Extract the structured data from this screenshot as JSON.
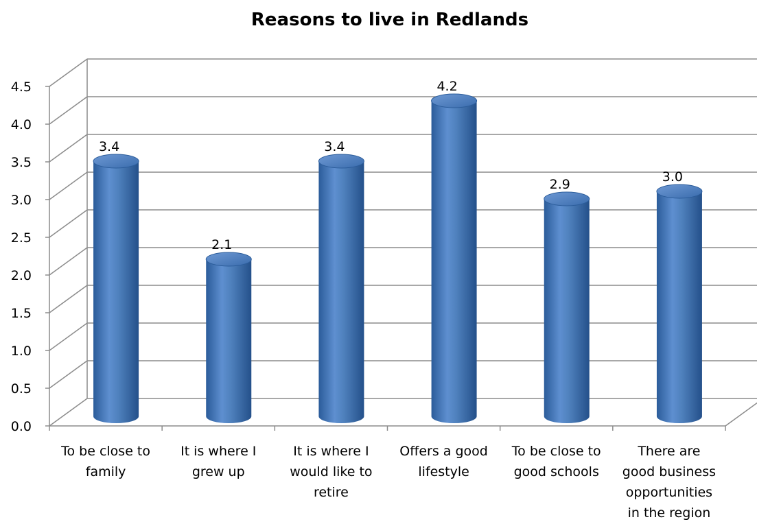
{
  "chart_data": {
    "type": "bar",
    "title": "Reasons to live in Redlands",
    "xlabel": "",
    "ylabel": "",
    "ylim": [
      0,
      4.5
    ],
    "yticks": [
      "0.0",
      "0.5",
      "1.0",
      "1.5",
      "2.0",
      "2.5",
      "3.0",
      "3.5",
      "4.0",
      "4.5"
    ],
    "categories": [
      [
        "To be close to",
        "family"
      ],
      [
        "It is where I",
        "grew up"
      ],
      [
        "It is where I",
        "would like to",
        "retire"
      ],
      [
        "Offers a good",
        "lifestyle"
      ],
      [
        "To be close to",
        "good schools"
      ],
      [
        "There are",
        "good business",
        "opportunities",
        "in the region"
      ]
    ],
    "values": [
      3.4,
      2.1,
      3.4,
      4.2,
      2.9,
      3.0
    ],
    "data_labels": [
      "3.4",
      "2.1",
      "3.4",
      "4.2",
      "2.9",
      "3.0"
    ],
    "grid": true,
    "legend": "none",
    "bar_style": "3d-cylinder",
    "colors": {
      "bar": "#4F81BD",
      "bar_dark": "#2B5C9A",
      "bar_light": "#7FA7DA",
      "grid": "#8C8C8C"
    }
  }
}
